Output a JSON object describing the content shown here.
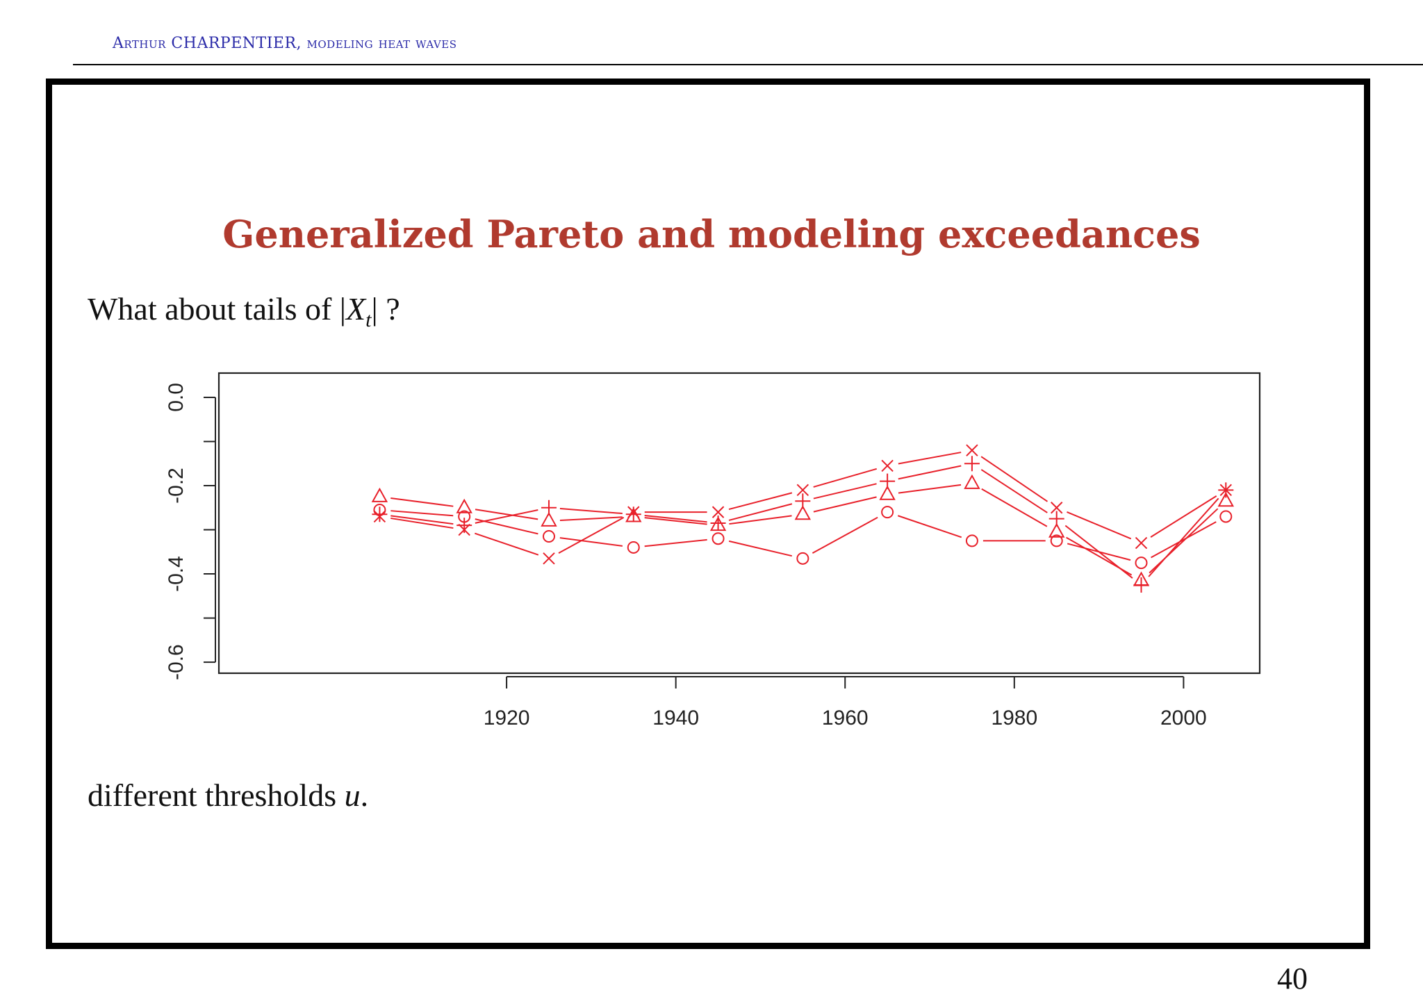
{
  "header": {
    "author": "Arthur CHARPENTIER",
    "subtitle": "modeling heat waves"
  },
  "slide": {
    "title": "Generalized Pareto and modeling exceedances",
    "question_prefix": "What about tails of ",
    "question_math_open": "|",
    "question_math_var": "X",
    "question_math_sub": "t",
    "question_math_close": "|",
    "question_suffix": " ?",
    "footer_prefix": "different thresholds ",
    "footer_var": "u",
    "footer_suffix": ".",
    "page_number": "40"
  },
  "colors": {
    "series": "#e8202a",
    "title": "#b03a2e",
    "header": "#2a2aa8"
  },
  "chart_data": {
    "type": "line",
    "title": "",
    "xlabel": "",
    "ylabel": "",
    "x": [
      1905,
      1915,
      1925,
      1935,
      1945,
      1955,
      1965,
      1975,
      1985,
      1995,
      2005
    ],
    "xlim": [
      1886,
      2009
    ],
    "ylim": [
      -0.625,
      0.055
    ],
    "x_ticks": [
      1920,
      1940,
      1960,
      1980,
      2000
    ],
    "x_tick_labels": [
      "1920",
      "1940",
      "1960",
      "1980",
      "2000"
    ],
    "y_ticks": [
      0.0,
      -0.1,
      -0.2,
      -0.3,
      -0.4,
      -0.5,
      -0.6
    ],
    "y_tick_labels": [
      "0.0",
      "",
      "-0.2",
      "",
      "-0.4",
      "",
      "-0.6"
    ],
    "grid": false,
    "series": [
      {
        "marker": "circle",
        "values": [
          -0.255,
          -0.27,
          -0.315,
          -0.34,
          -0.32,
          -0.365,
          -0.26,
          -0.325,
          -0.325,
          -0.375,
          -0.27
        ]
      },
      {
        "marker": "triangle",
        "values": [
          -0.225,
          -0.25,
          -0.28,
          -0.27,
          -0.29,
          -0.265,
          -0.22,
          -0.195,
          -0.305,
          -0.415,
          -0.235
        ]
      },
      {
        "marker": "plus",
        "values": [
          -0.265,
          -0.29,
          -0.25,
          -0.265,
          -0.285,
          -0.235,
          -0.19,
          -0.15,
          -0.275,
          -0.425,
          -0.21
        ]
      },
      {
        "marker": "cross",
        "values": [
          -0.27,
          -0.3,
          -0.365,
          -0.26,
          -0.26,
          -0.21,
          -0.155,
          -0.12,
          -0.25,
          -0.33,
          -0.21
        ]
      }
    ]
  }
}
